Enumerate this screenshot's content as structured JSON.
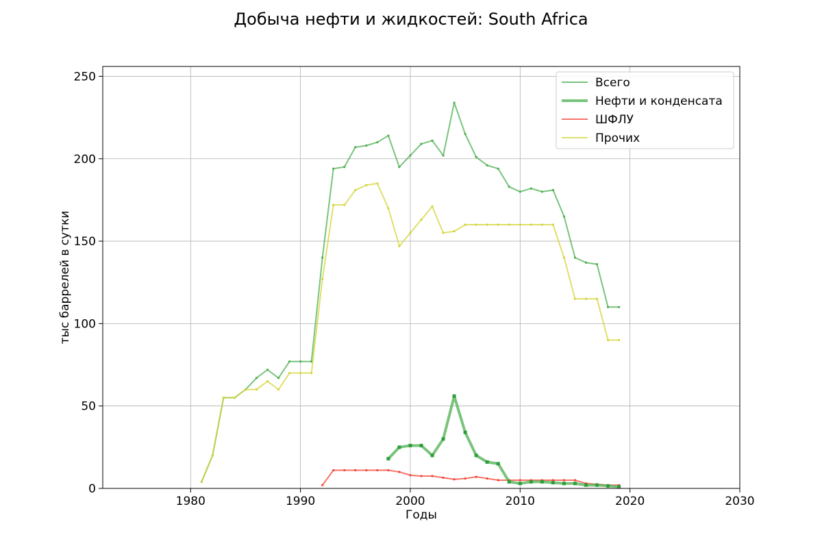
{
  "chart_data": {
    "type": "line",
    "title": "Добыча нефти и жидкостей: South Africa",
    "xlabel": "Годы",
    "ylabel": "тыс баррелей в сутки",
    "xlim": [
      1972,
      2030
    ],
    "ylim": [
      0,
      256
    ],
    "xticks": [
      1980,
      1990,
      2000,
      2010,
      2020,
      2030
    ],
    "yticks": [
      0,
      50,
      100,
      150,
      200,
      250
    ],
    "grid": true,
    "legend_position": "top-right",
    "series": [
      {
        "name": "Всего",
        "color": "#4caf50",
        "style": "thin",
        "x": [
          1981,
          1982,
          1983,
          1984,
          1985,
          1986,
          1987,
          1988,
          1989,
          1990,
          1991,
          1992,
          1993,
          1994,
          1995,
          1996,
          1997,
          1998,
          1999,
          2000,
          2001,
          2002,
          2003,
          2004,
          2005,
          2006,
          2007,
          2008,
          2009,
          2010,
          2011,
          2012,
          2013,
          2014,
          2015,
          2016,
          2017,
          2018,
          2019
        ],
        "y": [
          4,
          20,
          55,
          55,
          60,
          67,
          72,
          67,
          77,
          77,
          77,
          140,
          194,
          195,
          207,
          208,
          210,
          214,
          195,
          202,
          209,
          211,
          202,
          234,
          215,
          201,
          196,
          194,
          183,
          180,
          182,
          180,
          181,
          165,
          140,
          137,
          136,
          110,
          110
        ]
      },
      {
        "name": "Нефти и конденсата",
        "color": "#4caf50",
        "style": "thick",
        "x": [
          1998,
          1999,
          2000,
          2001,
          2002,
          2003,
          2004,
          2005,
          2006,
          2007,
          2008,
          2009,
          2010,
          2011,
          2012,
          2013,
          2014,
          2015,
          2016,
          2017,
          2018,
          2019
        ],
        "y": [
          18,
          25,
          26,
          26,
          20,
          30,
          56,
          34,
          20,
          16,
          15,
          4,
          3,
          4,
          4,
          3.5,
          3,
          3,
          2,
          2,
          1.5,
          1
        ]
      },
      {
        "name": "ШФЛУ",
        "color": "#f44336",
        "style": "thin",
        "x": [
          1992,
          1993,
          1994,
          1995,
          1996,
          1997,
          1998,
          1999,
          2000,
          2001,
          2002,
          2003,
          2004,
          2005,
          2006,
          2007,
          2008,
          2009,
          2010,
          2011,
          2012,
          2013,
          2014,
          2015,
          2016,
          2017,
          2018,
          2019
        ],
        "y": [
          2,
          11,
          11,
          11,
          11,
          11,
          11,
          10,
          8,
          7.5,
          7.5,
          6.5,
          5.5,
          6,
          7,
          6,
          5,
          5,
          5,
          5,
          5,
          5,
          5,
          5,
          3,
          2.5,
          2,
          2
        ]
      },
      {
        "name": "Прочих",
        "color": "#d4d43a",
        "style": "thin",
        "x": [
          1981,
          1982,
          1983,
          1984,
          1985,
          1986,
          1987,
          1988,
          1989,
          1990,
          1991,
          1992,
          1993,
          1994,
          1995,
          1996,
          1997,
          1998,
          1999,
          2000,
          2001,
          2002,
          2003,
          2004,
          2005,
          2006,
          2007,
          2008,
          2009,
          2010,
          2011,
          2012,
          2013,
          2014,
          2015,
          2016,
          2017,
          2018,
          2019
        ],
        "y": [
          4,
          20,
          55,
          55,
          60,
          60,
          65,
          60,
          70,
          70,
          70,
          127,
          172,
          172,
          181,
          184,
          185,
          170,
          147,
          155,
          163,
          171,
          155,
          156,
          160,
          160,
          160,
          160,
          160,
          160,
          160,
          160,
          160,
          140,
          115,
          115,
          115,
          90,
          90
        ]
      }
    ]
  }
}
